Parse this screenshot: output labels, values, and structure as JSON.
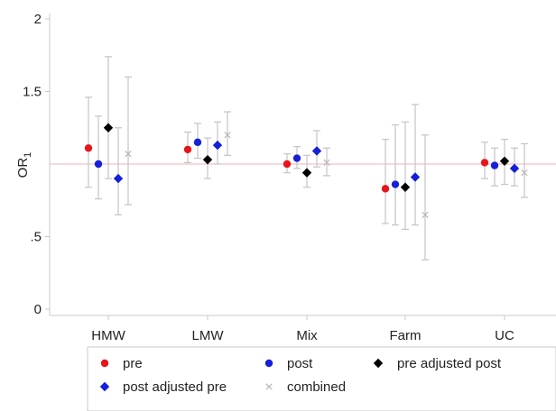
{
  "chart_data": {
    "type": "scatter",
    "ylabel": "OR",
    "ylabel_sub": "1",
    "categories": [
      "HMW",
      "LMW",
      "Mix",
      "Farm",
      "UC"
    ],
    "yticks": [
      {
        "value": 0,
        "label": "0"
      },
      {
        "value": 0.5,
        "label": ".5"
      },
      {
        "value": 1.5,
        "label": "1.5"
      },
      {
        "value": 2,
        "label": "2"
      }
    ],
    "ylim": [
      -0.03,
      2.05
    ],
    "reference_line": 1,
    "colors": {
      "pre": "#e8141c",
      "post": "#1520d8",
      "pre_adjusted_post": "#000000",
      "post_adjusted_pre": "#1520d8",
      "combined": "#b8b8b8",
      "errorbar": "#c4c4c4",
      "reference": "#f2b3b8",
      "axis": "#c8c8c8"
    },
    "series": [
      {
        "key": "pre",
        "name": "pre",
        "marker": "circle",
        "color": "#e8141c",
        "values": [
          1.11,
          1.1,
          1.0,
          0.83,
          1.01
        ],
        "lower": [
          0.84,
          1.01,
          0.94,
          0.59,
          0.9
        ],
        "upper": [
          1.46,
          1.22,
          1.07,
          1.17,
          1.15
        ]
      },
      {
        "key": "post",
        "name": "post",
        "marker": "circle",
        "color": "#1520d8",
        "values": [
          1.0,
          1.15,
          1.04,
          0.86,
          0.99
        ],
        "lower": [
          0.76,
          1.04,
          0.97,
          0.58,
          0.85
        ],
        "upper": [
          1.33,
          1.28,
          1.12,
          1.27,
          1.11
        ]
      },
      {
        "key": "pre_adjusted_post",
        "name": "pre adjusted post",
        "marker": "diamond",
        "color": "#000000",
        "values": [
          1.25,
          1.03,
          0.94,
          0.84,
          1.02
        ],
        "lower": [
          0.9,
          0.9,
          0.84,
          0.55,
          0.86
        ],
        "upper": [
          1.74,
          1.18,
          1.06,
          1.29,
          1.17
        ]
      },
      {
        "key": "post_adjusted_pre",
        "name": "post adjusted pre",
        "marker": "diamond",
        "color": "#1520d8",
        "values": [
          0.9,
          1.13,
          1.09,
          0.91,
          0.97
        ],
        "lower": [
          0.65,
          1.0,
          0.98,
          0.58,
          0.85
        ],
        "upper": [
          1.25,
          1.29,
          1.23,
          1.41,
          1.11
        ]
      },
      {
        "key": "combined",
        "name": "combined",
        "marker": "x",
        "color": "#b8b8b8",
        "values": [
          1.07,
          1.2,
          1.01,
          0.65,
          0.94
        ],
        "lower": [
          0.72,
          1.06,
          0.92,
          0.34,
          0.77
        ],
        "upper": [
          1.6,
          1.36,
          1.11,
          1.2,
          1.14
        ]
      }
    ],
    "legend": {
      "placement": "bottom",
      "rows": [
        [
          "pre",
          "post",
          "pre_adjusted_post"
        ],
        [
          "post_adjusted_pre",
          "combined"
        ]
      ]
    }
  }
}
